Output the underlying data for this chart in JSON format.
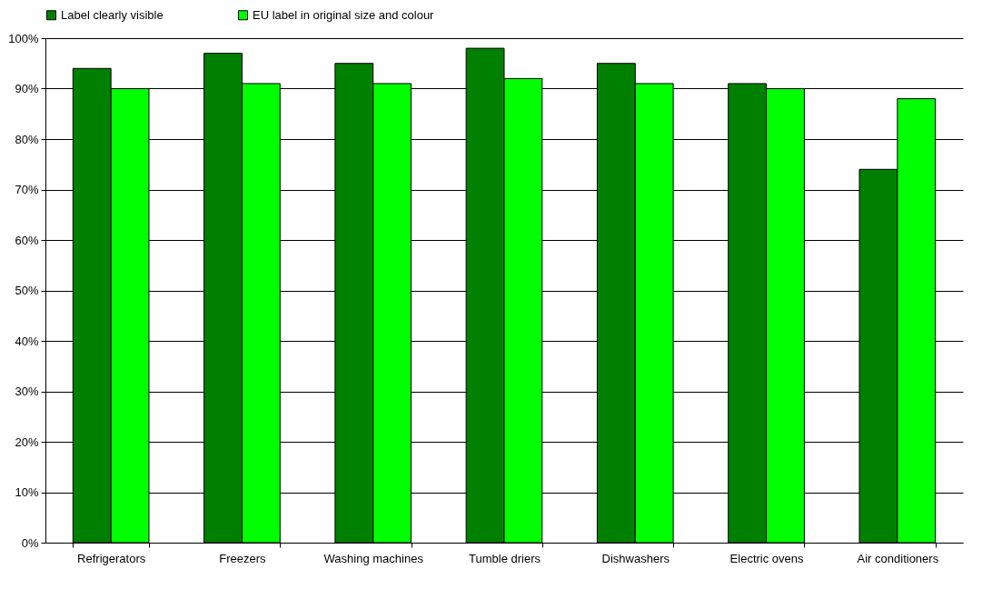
{
  "chart_data": {
    "type": "bar",
    "categories": [
      "Refrigerators",
      "Freezers",
      "Washing machines",
      "Tumble driers",
      "Dishwashers",
      "Electric ovens",
      "Air conditioners"
    ],
    "series": [
      {
        "name": "Label clearly visible",
        "color": "#008000",
        "values": [
          94,
          97,
          95,
          98,
          95,
          91,
          74
        ]
      },
      {
        "name": "EU label in original size and colour",
        "color": "#00ff00",
        "values": [
          90,
          91,
          91,
          92,
          91,
          90,
          88
        ]
      }
    ],
    "ylim": [
      0,
      100
    ],
    "yticks": [
      {
        "value": 0,
        "label": "0%"
      },
      {
        "value": 10,
        "label": "10%"
      },
      {
        "value": 20,
        "label": "20%"
      },
      {
        "value": 30,
        "label": "30%"
      },
      {
        "value": 40,
        "label": "40%"
      },
      {
        "value": 50,
        "label": "50%"
      },
      {
        "value": 60,
        "label": "60%"
      },
      {
        "value": 70,
        "label": "70%"
      },
      {
        "value": 80,
        "label": "80%"
      },
      {
        "value": 90,
        "label": "90%"
      },
      {
        "value": 100,
        "label": "100%"
      }
    ],
    "grid": "y",
    "legend": "top"
  }
}
